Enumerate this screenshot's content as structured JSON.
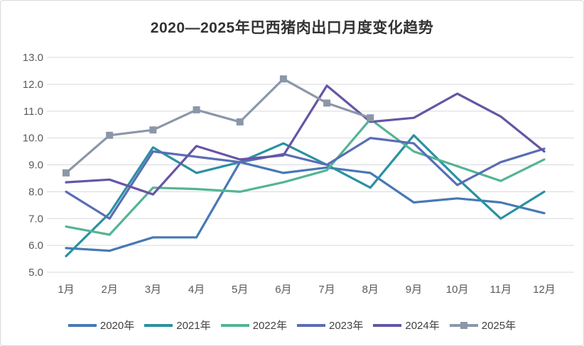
{
  "page": {
    "background": "#ffffff",
    "border_color": "#d9d9d9"
  },
  "chart_data": {
    "type": "line",
    "title": "2020—2025年巴西猪肉出口月度变化趋势",
    "categories": [
      "1月",
      "2月",
      "3月",
      "4月",
      "5月",
      "6月",
      "7月",
      "8月",
      "9月",
      "10月",
      "11月",
      "12月"
    ],
    "series": [
      {
        "name": "2020年",
        "color": "#4779b4",
        "marker": "none",
        "values": [
          5.9,
          5.8,
          6.3,
          6.3,
          9.1,
          8.7,
          8.9,
          8.7,
          7.6,
          7.75,
          7.6,
          7.2
        ]
      },
      {
        "name": "2021年",
        "color": "#2a91a3",
        "marker": "none",
        "values": [
          5.6,
          7.2,
          9.65,
          8.7,
          9.1,
          9.8,
          9.0,
          8.15,
          10.1,
          8.5,
          7.0,
          8.0
        ]
      },
      {
        "name": "2022年",
        "color": "#54b494",
        "marker": "none",
        "values": [
          6.7,
          6.4,
          8.15,
          8.1,
          8.0,
          8.35,
          8.8,
          10.7,
          9.5,
          8.95,
          8.4,
          9.2
        ]
      },
      {
        "name": "2023年",
        "color": "#5a6db4",
        "marker": "none",
        "values": [
          8.0,
          7.0,
          9.5,
          9.3,
          9.1,
          9.4,
          9.0,
          10.0,
          9.8,
          8.25,
          9.1,
          9.6
        ]
      },
      {
        "name": "2024年",
        "color": "#6655a6",
        "marker": "none",
        "values": [
          8.35,
          8.45,
          7.9,
          9.7,
          9.2,
          9.35,
          11.95,
          10.6,
          10.75,
          11.65,
          10.8,
          9.5
        ]
      },
      {
        "name": "2025年",
        "color": "#8b97a8",
        "marker": "square",
        "values": [
          8.7,
          10.1,
          10.3,
          11.05,
          10.6,
          12.2,
          11.3,
          10.75,
          null,
          null,
          null,
          null
        ]
      }
    ],
    "ylim": [
      5.0,
      13.0
    ],
    "ytick_step": 1.0,
    "ytick_labels": [
      "5.0",
      "6.0",
      "7.0",
      "8.0",
      "9.0",
      "10.0",
      "11.0",
      "12.0",
      "13.0"
    ],
    "grid": "horizontal",
    "grid_color": "#d9d9d9",
    "axis_label_color": "#595959",
    "legend_position": "bottom"
  }
}
